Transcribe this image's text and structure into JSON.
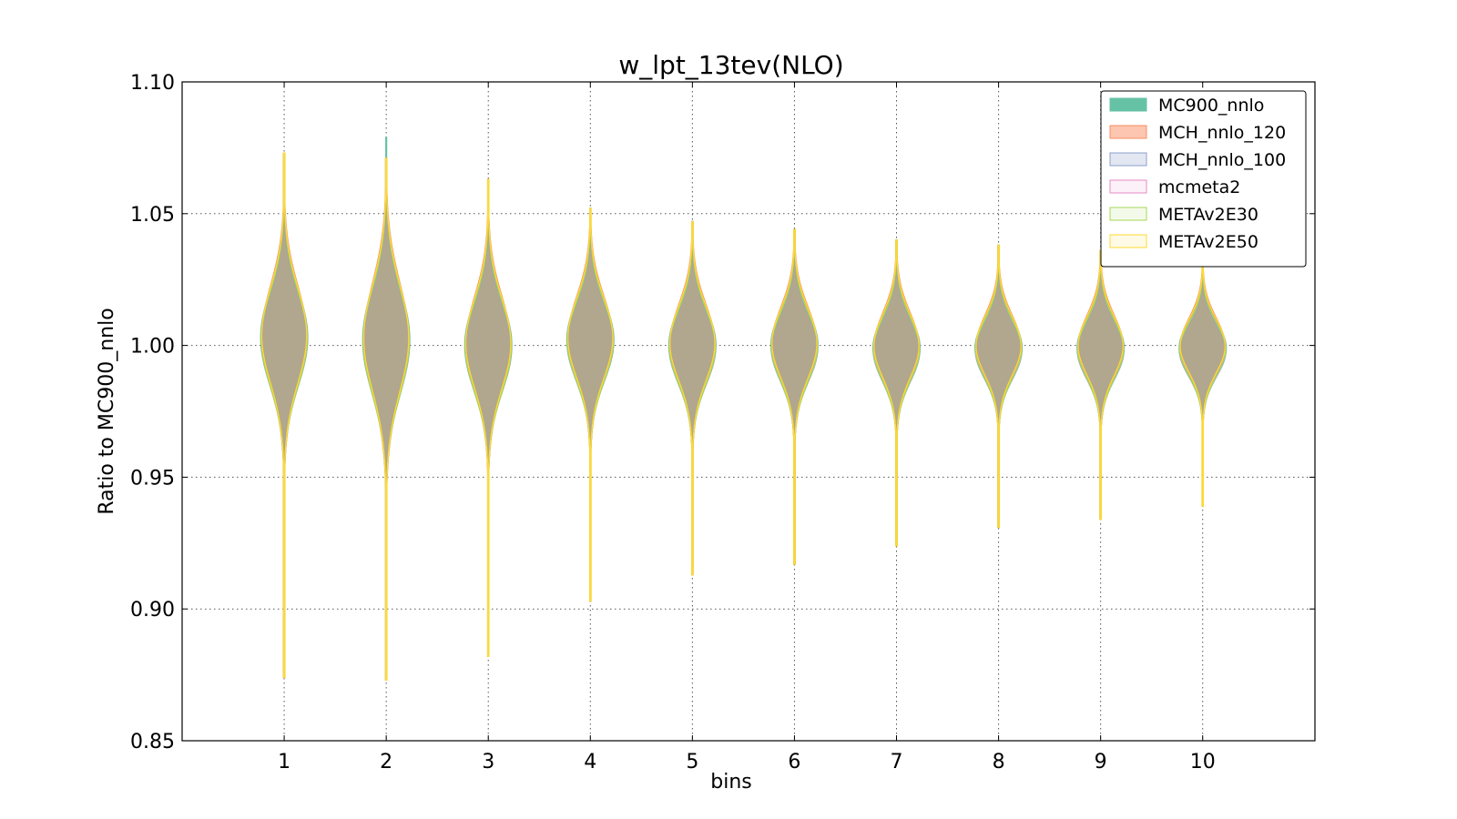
{
  "chart_data": {
    "type": "violin",
    "title": "w_lpt_13tev(NLO)",
    "xlabel": "bins",
    "ylabel": "Ratio to MC900_nnlo",
    "ylim": [
      0.85,
      1.1
    ],
    "xlim": [
      0,
      11.1
    ],
    "yticks": [
      "0.85",
      "0.90",
      "0.95",
      "1.00",
      "1.05",
      "1.10"
    ],
    "categories": [
      "1",
      "2",
      "3",
      "4",
      "5",
      "6",
      "7",
      "8",
      "9",
      "10"
    ],
    "grid": true,
    "legend_position": "top-right",
    "series": [
      {
        "name": "MC900_nnlo",
        "fill": "#66c2a5",
        "edge": "#66c2a5",
        "alpha": 1.0
      },
      {
        "name": "MCH_nnlo_120",
        "fill": "#fc8d62",
        "edge": "#fc8d62",
        "alpha": 0.5
      },
      {
        "name": "MCH_nnlo_100",
        "fill": "#8da0cb",
        "edge": "#8da0cb",
        "alpha": 0.25
      },
      {
        "name": "mcmeta2",
        "fill": "#e78ac3",
        "edge": "#e78ac3",
        "alpha": 0.1
      },
      {
        "name": "METAv2E30",
        "fill": "#a6d854",
        "edge": "#a6d854",
        "alpha": 0.05
      },
      {
        "name": "METAv2E50",
        "fill": "#ffd92f",
        "edge": "#ffd92f",
        "alpha": 0.05
      }
    ],
    "violins": [
      {
        "bin": 1,
        "min": 0.874,
        "max": 1.073,
        "center": 1.003,
        "sd": 0.018,
        "mc900_min": 0.94,
        "mc900_max": 1.06
      },
      {
        "bin": 2,
        "min": 0.873,
        "max": 1.071,
        "center": 1.002,
        "sd": 0.02,
        "mc900_min": 0.935,
        "mc900_max": 1.079
      },
      {
        "bin": 3,
        "min": 0.882,
        "max": 1.063,
        "center": 1.0,
        "sd": 0.017,
        "mc900_min": 0.945,
        "mc900_max": 1.055
      },
      {
        "bin": 4,
        "min": 0.903,
        "max": 1.052,
        "center": 1.002,
        "sd": 0.015,
        "mc900_min": 0.955,
        "mc900_max": 1.048
      },
      {
        "bin": 5,
        "min": 0.913,
        "max": 1.047,
        "center": 1.0,
        "sd": 0.014,
        "mc900_min": 0.958,
        "mc900_max": 1.044
      },
      {
        "bin": 6,
        "min": 0.917,
        "max": 1.044,
        "center": 1.0,
        "sd": 0.013,
        "mc900_min": 0.96,
        "mc900_max": 1.041
      },
      {
        "bin": 7,
        "min": 0.924,
        "max": 1.04,
        "center": 0.999,
        "sd": 0.012,
        "mc900_min": 0.962,
        "mc900_max": 1.037
      },
      {
        "bin": 8,
        "min": 0.931,
        "max": 1.038,
        "center": 0.999,
        "sd": 0.011,
        "mc900_min": 0.965,
        "mc900_max": 1.035
      },
      {
        "bin": 9,
        "min": 0.934,
        "max": 1.036,
        "center": 0.999,
        "sd": 0.011,
        "mc900_min": 0.967,
        "mc900_max": 1.033
      },
      {
        "bin": 10,
        "min": 0.939,
        "max": 1.033,
        "center": 0.999,
        "sd": 0.01,
        "mc900_min": 0.968,
        "mc900_max": 1.031
      }
    ]
  }
}
